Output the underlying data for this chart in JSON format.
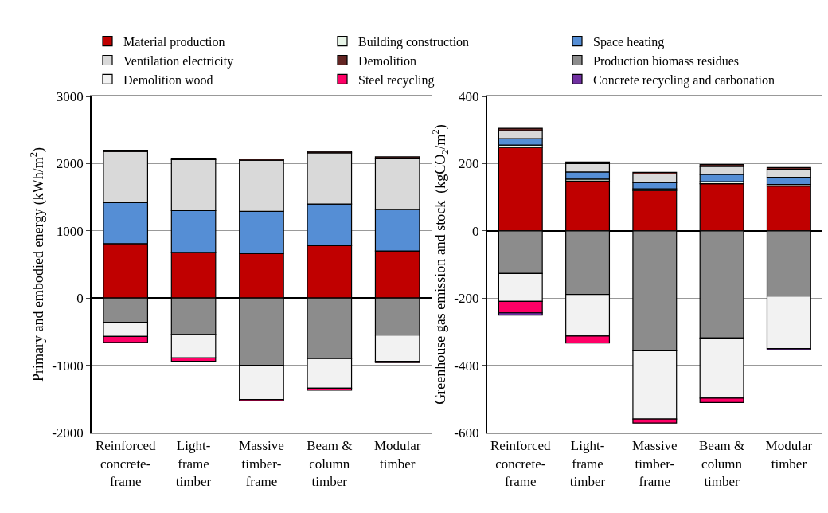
{
  "chart_data": [
    {
      "type": "bar",
      "stacked": true,
      "ylabel": "Primary and embodied energy (kWh/m$^{2}$)",
      "categories": [
        "Reinforced\nconcrete-\nframe",
        "Light-\nframe\ntimber",
        "Massive\ntimber-\nframe",
        "Beam &\ncolumn\ntimber",
        "Modular\ntimber"
      ],
      "ylim": [
        -2000,
        3000
      ],
      "yticks": [
        -2000,
        -1000,
        0,
        1000,
        2000,
        3000
      ],
      "grid": "y",
      "legend": "top",
      "series": [
        {
          "name": "Material production",
          "color": "#c00000",
          "values": [
            810,
            680,
            660,
            780,
            700
          ]
        },
        {
          "name": "Building construction",
          "color": "#e8f5e8",
          "values": [
            null,
            null,
            null,
            null,
            null
          ]
        },
        {
          "name": "Space heating",
          "color": "#558ed5",
          "values": [
            610,
            620,
            630,
            620,
            620
          ]
        },
        {
          "name": "Ventilation electricity",
          "color": "#d9d9d9",
          "values": [
            760,
            760,
            760,
            760,
            760
          ]
        },
        {
          "name": "Demolition",
          "color": "#632523",
          "values": [
            20,
            20,
            20,
            20,
            20
          ]
        },
        {
          "name": "Production biomass residues",
          "color": "#8c8c8c",
          "values": [
            -360,
            -540,
            -1000,
            -900,
            -550
          ]
        },
        {
          "name": "Demolition wood",
          "color": "#f2f2f2",
          "values": [
            -210,
            -350,
            -510,
            -440,
            -390
          ]
        },
        {
          "name": "Steel recycling",
          "color": "#ff0066",
          "values": [
            -90,
            -50,
            -20,
            -30,
            -20
          ]
        },
        {
          "name": "Concrete recycling and carbonation",
          "color": "#7030a0",
          "values": [
            null,
            null,
            null,
            null,
            null
          ]
        }
      ]
    },
    {
      "type": "bar",
      "stacked": true,
      "ylabel": "Greenhouse gas emission and stock  (kgCO$_{2}$/m$^{2}$)",
      "categories": [
        "Reinforced\nconcrete-\nframe",
        "Light-\nframe\ntimber",
        "Massive\ntimber-\nframe",
        "Beam &\ncolumn\ntimber",
        "Modular\ntimber"
      ],
      "ylim": [
        -600,
        400
      ],
      "yticks": [
        -600,
        -400,
        -200,
        0,
        200,
        400
      ],
      "grid": "y",
      "series": [
        {
          "color": "#c00000",
          "values": [
            248,
            148,
            120,
            140,
            133
          ]
        },
        {
          "color": "#e8f5e8",
          "values": [
            7,
            6,
            5,
            6,
            5
          ]
        },
        {
          "color": "#558ed5",
          "values": [
            19,
            21,
            19,
            22,
            21
          ]
        },
        {
          "color": "#d9d9d9",
          "values": [
            24,
            25,
            25,
            24,
            24
          ]
        },
        {
          "color": "#632523",
          "values": [
            7,
            5,
            5,
            5,
            5
          ]
        },
        {
          "color": "#8c8c8c",
          "values": [
            -127,
            -189,
            -357,
            -319,
            -194
          ]
        },
        {
          "color": "#f2f2f2",
          "values": [
            -83,
            -124,
            -203,
            -179,
            -156
          ]
        },
        {
          "color": "#ff0066",
          "values": [
            -34,
            -21,
            -12,
            -13,
            null
          ]
        },
        {
          "color": "#7030a0",
          "values": [
            -7,
            null,
            null,
            null,
            -4
          ]
        }
      ]
    }
  ]
}
